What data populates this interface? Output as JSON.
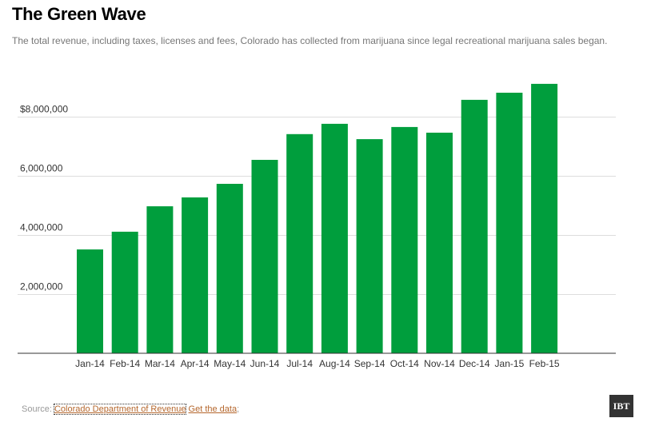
{
  "header": {
    "title": "The Green Wave",
    "subtitle": "The total revenue, including taxes, licenses and fees, Colorado has collected from marijuana since legal recreational marijuana sales began."
  },
  "footer": {
    "source_label": "Source:",
    "source_link": "Colorado Department of Revenue",
    "data_link": "Get the data",
    "trailing": ";",
    "logo": "IBT"
  },
  "colors": {
    "bar": "#009e3d",
    "grid": "#dddddd",
    "axis": "#333333"
  },
  "chart_data": {
    "type": "bar",
    "title": "The Green Wave",
    "xlabel": "",
    "ylabel": "",
    "categories": [
      "Jan-14",
      "Feb-14",
      "Mar-14",
      "Apr-14",
      "May-14",
      "Jun-14",
      "Jul-14",
      "Aug-14",
      "Sep-14",
      "Oct-14",
      "Nov-14",
      "Dec-14",
      "Jan-15",
      "Feb-15"
    ],
    "values": [
      3510000,
      4110000,
      4970000,
      5270000,
      5730000,
      6540000,
      7410000,
      7760000,
      7240000,
      7650000,
      7460000,
      8570000,
      8810000,
      9110000
    ],
    "ylim": [
      0,
      9000000
    ],
    "yticks": [
      2000000,
      4000000,
      6000000,
      8000000
    ],
    "ytick_labels": [
      "2,000,000",
      "4,000,000",
      "6,000,000",
      "$8,000,000"
    ],
    "grid": true,
    "legend": "none"
  }
}
